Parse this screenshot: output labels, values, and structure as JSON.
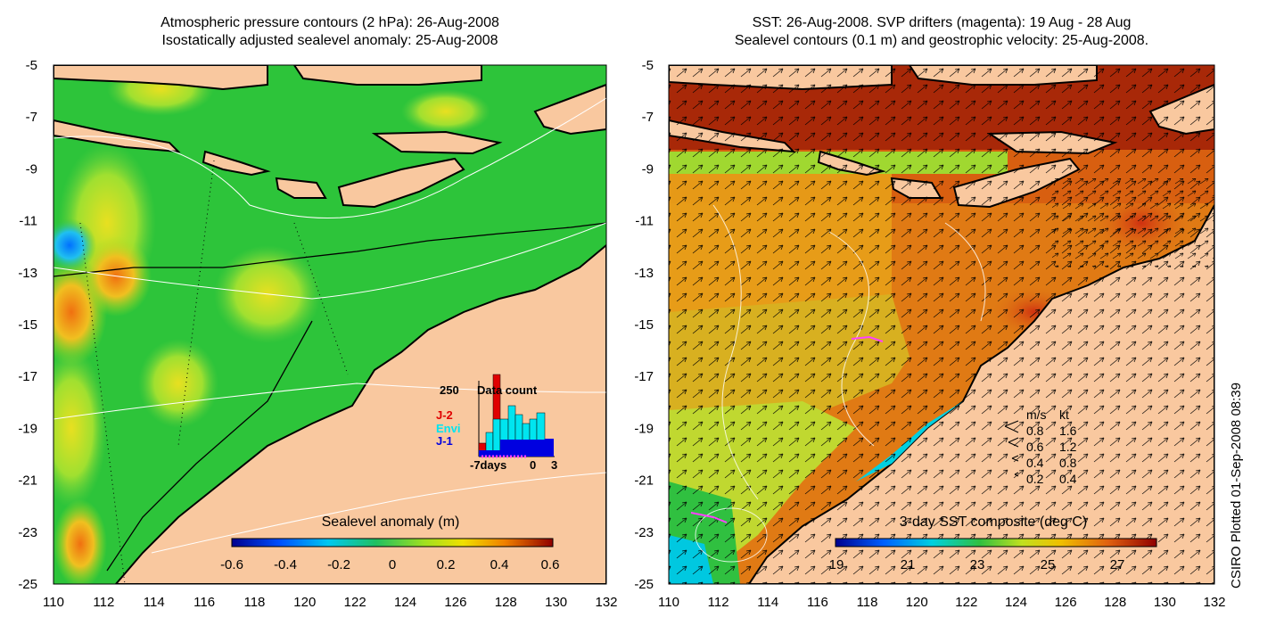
{
  "left_panel": {
    "title_line1": "Atmospheric pressure contours (2 hPa): 26-Aug-2008",
    "title_line2": "Isostatically adjusted sealevel anomaly: 25-Aug-2008",
    "colorbar_label": "Sealevel anomaly (m)",
    "colorbar_ticks": [
      "-0.6",
      "-0.4",
      "-0.2",
      "0",
      "0.2",
      "0.4",
      "0.6"
    ],
    "inset": {
      "count_label": "250",
      "title": "Data count",
      "legend": [
        {
          "name": "J-2",
          "color": "#e00000"
        },
        {
          "name": "Envi",
          "color": "#00e5f0"
        },
        {
          "name": "J-1",
          "color": "#0000e0"
        }
      ],
      "x_labels": [
        "-7days",
        "0",
        "3"
      ]
    }
  },
  "right_panel": {
    "title_line1": "SST: 26-Aug-2008. SVP drifters (magenta): 19 Aug - 28 Aug",
    "title_line2": "Sealevel contours (0.1 m) and geostrophic velocity: 25-Aug-2008.",
    "colorbar_label": "3-day SST composite (deg C)",
    "colorbar_ticks": [
      "19",
      "21",
      "23",
      "25",
      "27"
    ],
    "speed_legend": {
      "headers": [
        "m/s",
        "kt"
      ],
      "rows": [
        [
          "0.8",
          "1.6"
        ],
        [
          "0.6",
          "1.2"
        ],
        [
          "0.4",
          "0.8"
        ],
        [
          "0.2",
          "0.4"
        ]
      ]
    }
  },
  "axes": {
    "x_ticks": [
      "110",
      "112",
      "114",
      "116",
      "118",
      "120",
      "122",
      "124",
      "126",
      "128",
      "130",
      "132"
    ],
    "y_ticks": [
      "-5",
      "-7",
      "-9",
      "-11",
      "-13",
      "-15",
      "-17",
      "-19",
      "-21",
      "-23",
      "-25"
    ]
  },
  "credit": "CSIRO Plotted 01-Sep-2008 08:39",
  "colors": {
    "land": "#f9c89f",
    "ocean_green": "#2dc43a",
    "sst_orange": "#e07a14"
  }
}
